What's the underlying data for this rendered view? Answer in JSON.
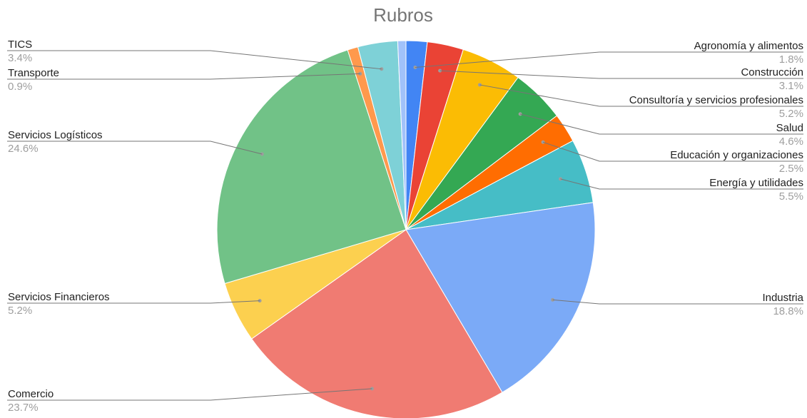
{
  "chart_data": {
    "type": "pie",
    "title": "Rubros",
    "slices": [
      {
        "name": "Agronomía y alimentos",
        "value": 1.8,
        "label": "1.8%",
        "color": "#4285f4"
      },
      {
        "name": "Construcción",
        "value": 3.1,
        "label": "3.1%",
        "color": "#ea4335"
      },
      {
        "name": "Consultoría y servicios profesionales",
        "value": 5.2,
        "label": "5.2%",
        "color": "#fbbc04"
      },
      {
        "name": "Salud",
        "value": 4.6,
        "label": "4.6%",
        "color": "#34a853"
      },
      {
        "name": "Educación y organizaciones",
        "value": 2.5,
        "label": "2.5%",
        "color": "#ff6d01"
      },
      {
        "name": "Energía y utilidades",
        "value": 5.5,
        "label": "5.5%",
        "color": "#46bdc6"
      },
      {
        "name": "Industria",
        "value": 18.8,
        "label": "18.8%",
        "color": "#7baaf7"
      },
      {
        "name": "Comercio",
        "value": 23.7,
        "label": "23.7%",
        "color": "#f07b72"
      },
      {
        "name": "Servicios Financieros",
        "value": 5.2,
        "label": "5.2%",
        "color": "#fcd04f"
      },
      {
        "name": "Servicios Logísticos",
        "value": 24.6,
        "label": "24.6%",
        "color": "#71c287"
      },
      {
        "name": "Transporte",
        "value": 0.9,
        "label": "0.9%",
        "color": "#ff994d"
      },
      {
        "name": "TICS",
        "value": 3.4,
        "label": "3.4%",
        "color": "#7ed1d7"
      },
      {
        "name": "",
        "value": 0.7,
        "label": "",
        "color": "#a1c2fa"
      }
    ]
  }
}
